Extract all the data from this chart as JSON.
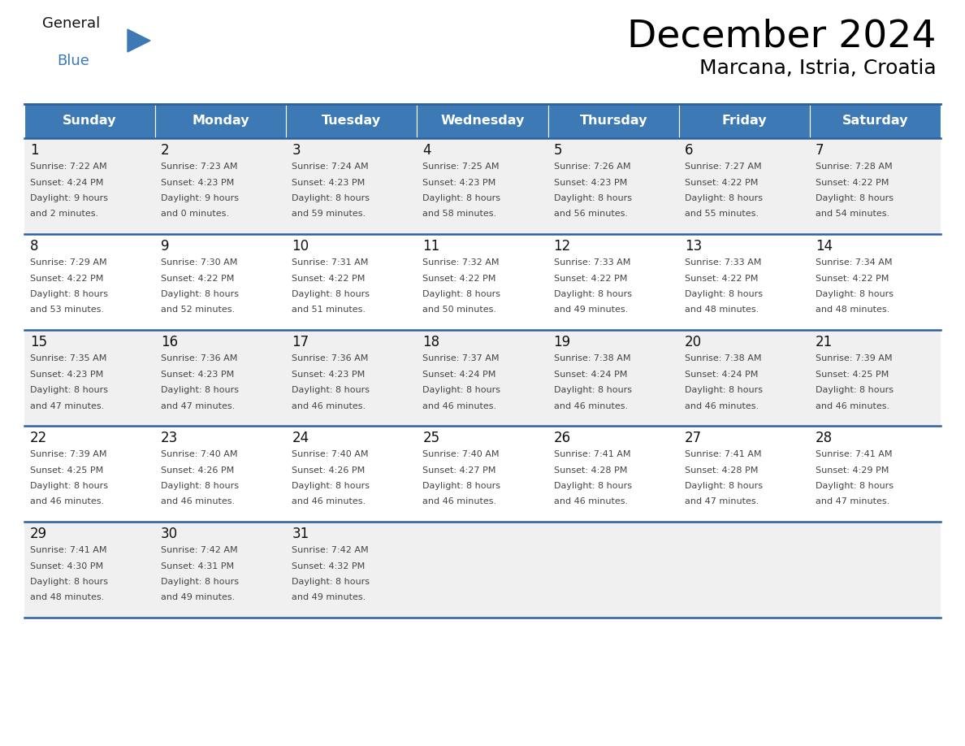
{
  "title": "December 2024",
  "subtitle": "Marcana, Istria, Croatia",
  "days_of_week": [
    "Sunday",
    "Monday",
    "Tuesday",
    "Wednesday",
    "Thursday",
    "Friday",
    "Saturday"
  ],
  "header_bg": "#3d7ab5",
  "header_text": "#ffffff",
  "cell_bg_odd": "#f0f0f0",
  "cell_bg_even": "#ffffff",
  "grid_line_color": "#2d5f9e",
  "text_color": "#444444",
  "day_num_color": "#111111",
  "calendar_data": [
    [
      {
        "day": 1,
        "sunrise": "7:22 AM",
        "sunset": "4:24 PM",
        "daylight": "9 hours",
        "daylight2": "and 2 minutes."
      },
      {
        "day": 2,
        "sunrise": "7:23 AM",
        "sunset": "4:23 PM",
        "daylight": "9 hours",
        "daylight2": "and 0 minutes."
      },
      {
        "day": 3,
        "sunrise": "7:24 AM",
        "sunset": "4:23 PM",
        "daylight": "8 hours",
        "daylight2": "and 59 minutes."
      },
      {
        "day": 4,
        "sunrise": "7:25 AM",
        "sunset": "4:23 PM",
        "daylight": "8 hours",
        "daylight2": "and 58 minutes."
      },
      {
        "day": 5,
        "sunrise": "7:26 AM",
        "sunset": "4:23 PM",
        "daylight": "8 hours",
        "daylight2": "and 56 minutes."
      },
      {
        "day": 6,
        "sunrise": "7:27 AM",
        "sunset": "4:22 PM",
        "daylight": "8 hours",
        "daylight2": "and 55 minutes."
      },
      {
        "day": 7,
        "sunrise": "7:28 AM",
        "sunset": "4:22 PM",
        "daylight": "8 hours",
        "daylight2": "and 54 minutes."
      }
    ],
    [
      {
        "day": 8,
        "sunrise": "7:29 AM",
        "sunset": "4:22 PM",
        "daylight": "8 hours",
        "daylight2": "and 53 minutes."
      },
      {
        "day": 9,
        "sunrise": "7:30 AM",
        "sunset": "4:22 PM",
        "daylight": "8 hours",
        "daylight2": "and 52 minutes."
      },
      {
        "day": 10,
        "sunrise": "7:31 AM",
        "sunset": "4:22 PM",
        "daylight": "8 hours",
        "daylight2": "and 51 minutes."
      },
      {
        "day": 11,
        "sunrise": "7:32 AM",
        "sunset": "4:22 PM",
        "daylight": "8 hours",
        "daylight2": "and 50 minutes."
      },
      {
        "day": 12,
        "sunrise": "7:33 AM",
        "sunset": "4:22 PM",
        "daylight": "8 hours",
        "daylight2": "and 49 minutes."
      },
      {
        "day": 13,
        "sunrise": "7:33 AM",
        "sunset": "4:22 PM",
        "daylight": "8 hours",
        "daylight2": "and 48 minutes."
      },
      {
        "day": 14,
        "sunrise": "7:34 AM",
        "sunset": "4:22 PM",
        "daylight": "8 hours",
        "daylight2": "and 48 minutes."
      }
    ],
    [
      {
        "day": 15,
        "sunrise": "7:35 AM",
        "sunset": "4:23 PM",
        "daylight": "8 hours",
        "daylight2": "and 47 minutes."
      },
      {
        "day": 16,
        "sunrise": "7:36 AM",
        "sunset": "4:23 PM",
        "daylight": "8 hours",
        "daylight2": "and 47 minutes."
      },
      {
        "day": 17,
        "sunrise": "7:36 AM",
        "sunset": "4:23 PM",
        "daylight": "8 hours",
        "daylight2": "and 46 minutes."
      },
      {
        "day": 18,
        "sunrise": "7:37 AM",
        "sunset": "4:24 PM",
        "daylight": "8 hours",
        "daylight2": "and 46 minutes."
      },
      {
        "day": 19,
        "sunrise": "7:38 AM",
        "sunset": "4:24 PM",
        "daylight": "8 hours",
        "daylight2": "and 46 minutes."
      },
      {
        "day": 20,
        "sunrise": "7:38 AM",
        "sunset": "4:24 PM",
        "daylight": "8 hours",
        "daylight2": "and 46 minutes."
      },
      {
        "day": 21,
        "sunrise": "7:39 AM",
        "sunset": "4:25 PM",
        "daylight": "8 hours",
        "daylight2": "and 46 minutes."
      }
    ],
    [
      {
        "day": 22,
        "sunrise": "7:39 AM",
        "sunset": "4:25 PM",
        "daylight": "8 hours",
        "daylight2": "and 46 minutes."
      },
      {
        "day": 23,
        "sunrise": "7:40 AM",
        "sunset": "4:26 PM",
        "daylight": "8 hours",
        "daylight2": "and 46 minutes."
      },
      {
        "day": 24,
        "sunrise": "7:40 AM",
        "sunset": "4:26 PM",
        "daylight": "8 hours",
        "daylight2": "and 46 minutes."
      },
      {
        "day": 25,
        "sunrise": "7:40 AM",
        "sunset": "4:27 PM",
        "daylight": "8 hours",
        "daylight2": "and 46 minutes."
      },
      {
        "day": 26,
        "sunrise": "7:41 AM",
        "sunset": "4:28 PM",
        "daylight": "8 hours",
        "daylight2": "and 46 minutes."
      },
      {
        "day": 27,
        "sunrise": "7:41 AM",
        "sunset": "4:28 PM",
        "daylight": "8 hours",
        "daylight2": "and 47 minutes."
      },
      {
        "day": 28,
        "sunrise": "7:41 AM",
        "sunset": "4:29 PM",
        "daylight": "8 hours",
        "daylight2": "and 47 minutes."
      }
    ],
    [
      {
        "day": 29,
        "sunrise": "7:41 AM",
        "sunset": "4:30 PM",
        "daylight": "8 hours",
        "daylight2": "and 48 minutes."
      },
      {
        "day": 30,
        "sunrise": "7:42 AM",
        "sunset": "4:31 PM",
        "daylight": "8 hours",
        "daylight2": "and 49 minutes."
      },
      {
        "day": 31,
        "sunrise": "7:42 AM",
        "sunset": "4:32 PM",
        "daylight": "8 hours",
        "daylight2": "and 49 minutes."
      },
      null,
      null,
      null,
      null
    ]
  ],
  "fig_width": 11.88,
  "fig_height": 9.18
}
